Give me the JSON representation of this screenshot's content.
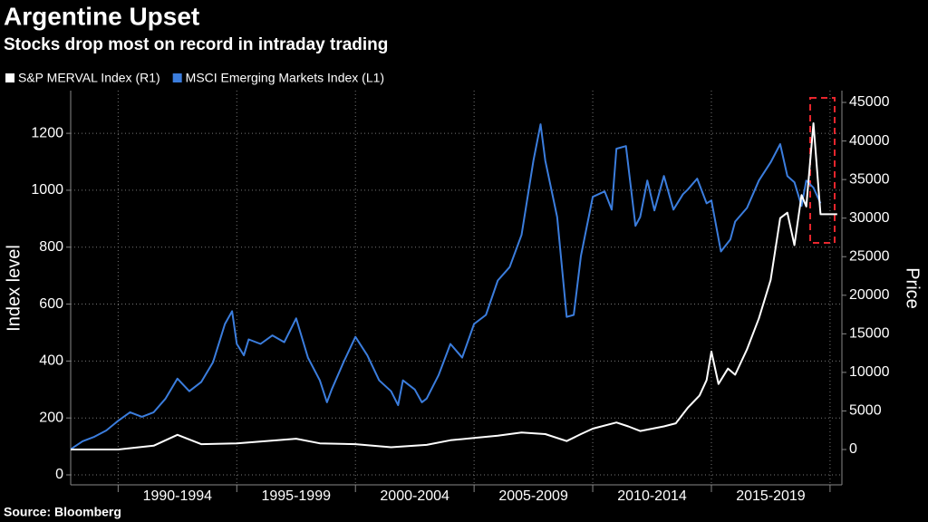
{
  "chart_data": {
    "type": "line",
    "title": "Argentine Upset",
    "subtitle": "Stocks drop most on record in intraday trading",
    "ylabel": "Index level",
    "y2label": "Price",
    "source": "Source: Bloomberg",
    "xlim": [
      1988,
      2020.5
    ],
    "xticks": [
      {
        "value": 1992.5,
        "label": "1990-1994"
      },
      {
        "value": 1997.5,
        "label": "1995-1999"
      },
      {
        "value": 2002.5,
        "label": "2000-2004"
      },
      {
        "value": 2007.5,
        "label": "2005-2009"
      },
      {
        "value": 2012.5,
        "label": "2010-2014"
      },
      {
        "value": 2017.5,
        "label": "2015-2019"
      }
    ],
    "ylim": [
      -35,
      1350
    ],
    "yticks": [
      0,
      200,
      400,
      600,
      800,
      1000,
      1200
    ],
    "y2lim": [
      -4580,
      46530
    ],
    "y2ticks": [
      0,
      5000,
      10000,
      15000,
      20000,
      25000,
      30000,
      35000,
      40000,
      45000
    ],
    "grid": true,
    "series": [
      {
        "name": "S&P MERVAL Index (R1)",
        "color": "#ffffff",
        "axis": "y2",
        "x": [
          1988,
          1990,
          1991.5,
          1992.5,
          1993.5,
          1995,
          1997.5,
          1998.5,
          2000,
          2001.5,
          2002,
          2003,
          2004,
          2005,
          2006,
          2007,
          2008,
          2008.9,
          2009.5,
          2010,
          2011,
          2011.5,
          2012,
          2013,
          2013.5,
          2014,
          2014.5,
          2014.8,
          2015,
          2015.3,
          2015.7,
          2016,
          2016.5,
          2017,
          2017.5,
          2017.9,
          2018.2,
          2018.5,
          2018.8,
          2019,
          2019.3,
          2019.6,
          2020.3
        ],
        "values": [
          0,
          0,
          500,
          1900,
          700,
          800,
          1400,
          800,
          700,
          300,
          400,
          600,
          1200,
          1500,
          1800,
          2200,
          2000,
          1100,
          2000,
          2700,
          3500,
          3000,
          2400,
          3000,
          3400,
          5400,
          7000,
          9000,
          12700,
          8500,
          10500,
          9700,
          13000,
          17000,
          22000,
          30000,
          30700,
          26500,
          33000,
          31500,
          42300,
          30500,
          30500
        ]
      },
      {
        "name": "MSCI Emerging Markets Index (L1)",
        "color": "#3b7ddd",
        "axis": "y",
        "x": [
          1988,
          1988.5,
          1989,
          1989.5,
          1990,
          1990.5,
          1991,
          1991.5,
          1992,
          1992.5,
          1993,
          1993.5,
          1994,
          1994.5,
          1994.8,
          1995,
          1995.3,
          1995.5,
          1996,
          1996.5,
          1997,
          1997.5,
          1998,
          1998.5,
          1998.8,
          1999,
          1999.5,
          2000,
          2000.5,
          2001,
          2001.5,
          2001.8,
          2002,
          2002.5,
          2002.8,
          2003,
          2003.5,
          2004,
          2004.5,
          2005,
          2005.5,
          2006,
          2006.5,
          2007,
          2007.5,
          2007.8,
          2008,
          2008.5,
          2008.9,
          2009.2,
          2009.5,
          2010,
          2010.5,
          2010.8,
          2011,
          2011.4,
          2011.8,
          2012,
          2012.3,
          2012.6,
          2013,
          2013.4,
          2013.8,
          2014,
          2014.4,
          2014.8,
          2015,
          2015.4,
          2015.8,
          2016,
          2016.5,
          2017,
          2017.5,
          2017.9,
          2018.2,
          2018.5,
          2018.8,
          2019,
          2019.3,
          2019.6
        ],
        "values": [
          90,
          118,
          134,
          156,
          190,
          220,
          204,
          220,
          268,
          338,
          294,
          326,
          396,
          530,
          575,
          460,
          420,
          476,
          460,
          490,
          466,
          550,
          412,
          332,
          255,
          300,
          396,
          485,
          420,
          332,
          294,
          245,
          332,
          300,
          255,
          268,
          350,
          460,
          412,
          530,
          562,
          683,
          730,
          843,
          1104,
          1232,
          1104,
          906,
          555,
          562,
          769,
          977,
          996,
          932,
          1146,
          1155,
          875,
          906,
          1034,
          929,
          1050,
          932,
          986,
          1002,
          1041,
          954,
          964,
          785,
          827,
          890,
          938,
          1034,
          1098,
          1162,
          1050,
          1028,
          945,
          1034,
          1009,
          954
        ]
      }
    ]
  }
}
